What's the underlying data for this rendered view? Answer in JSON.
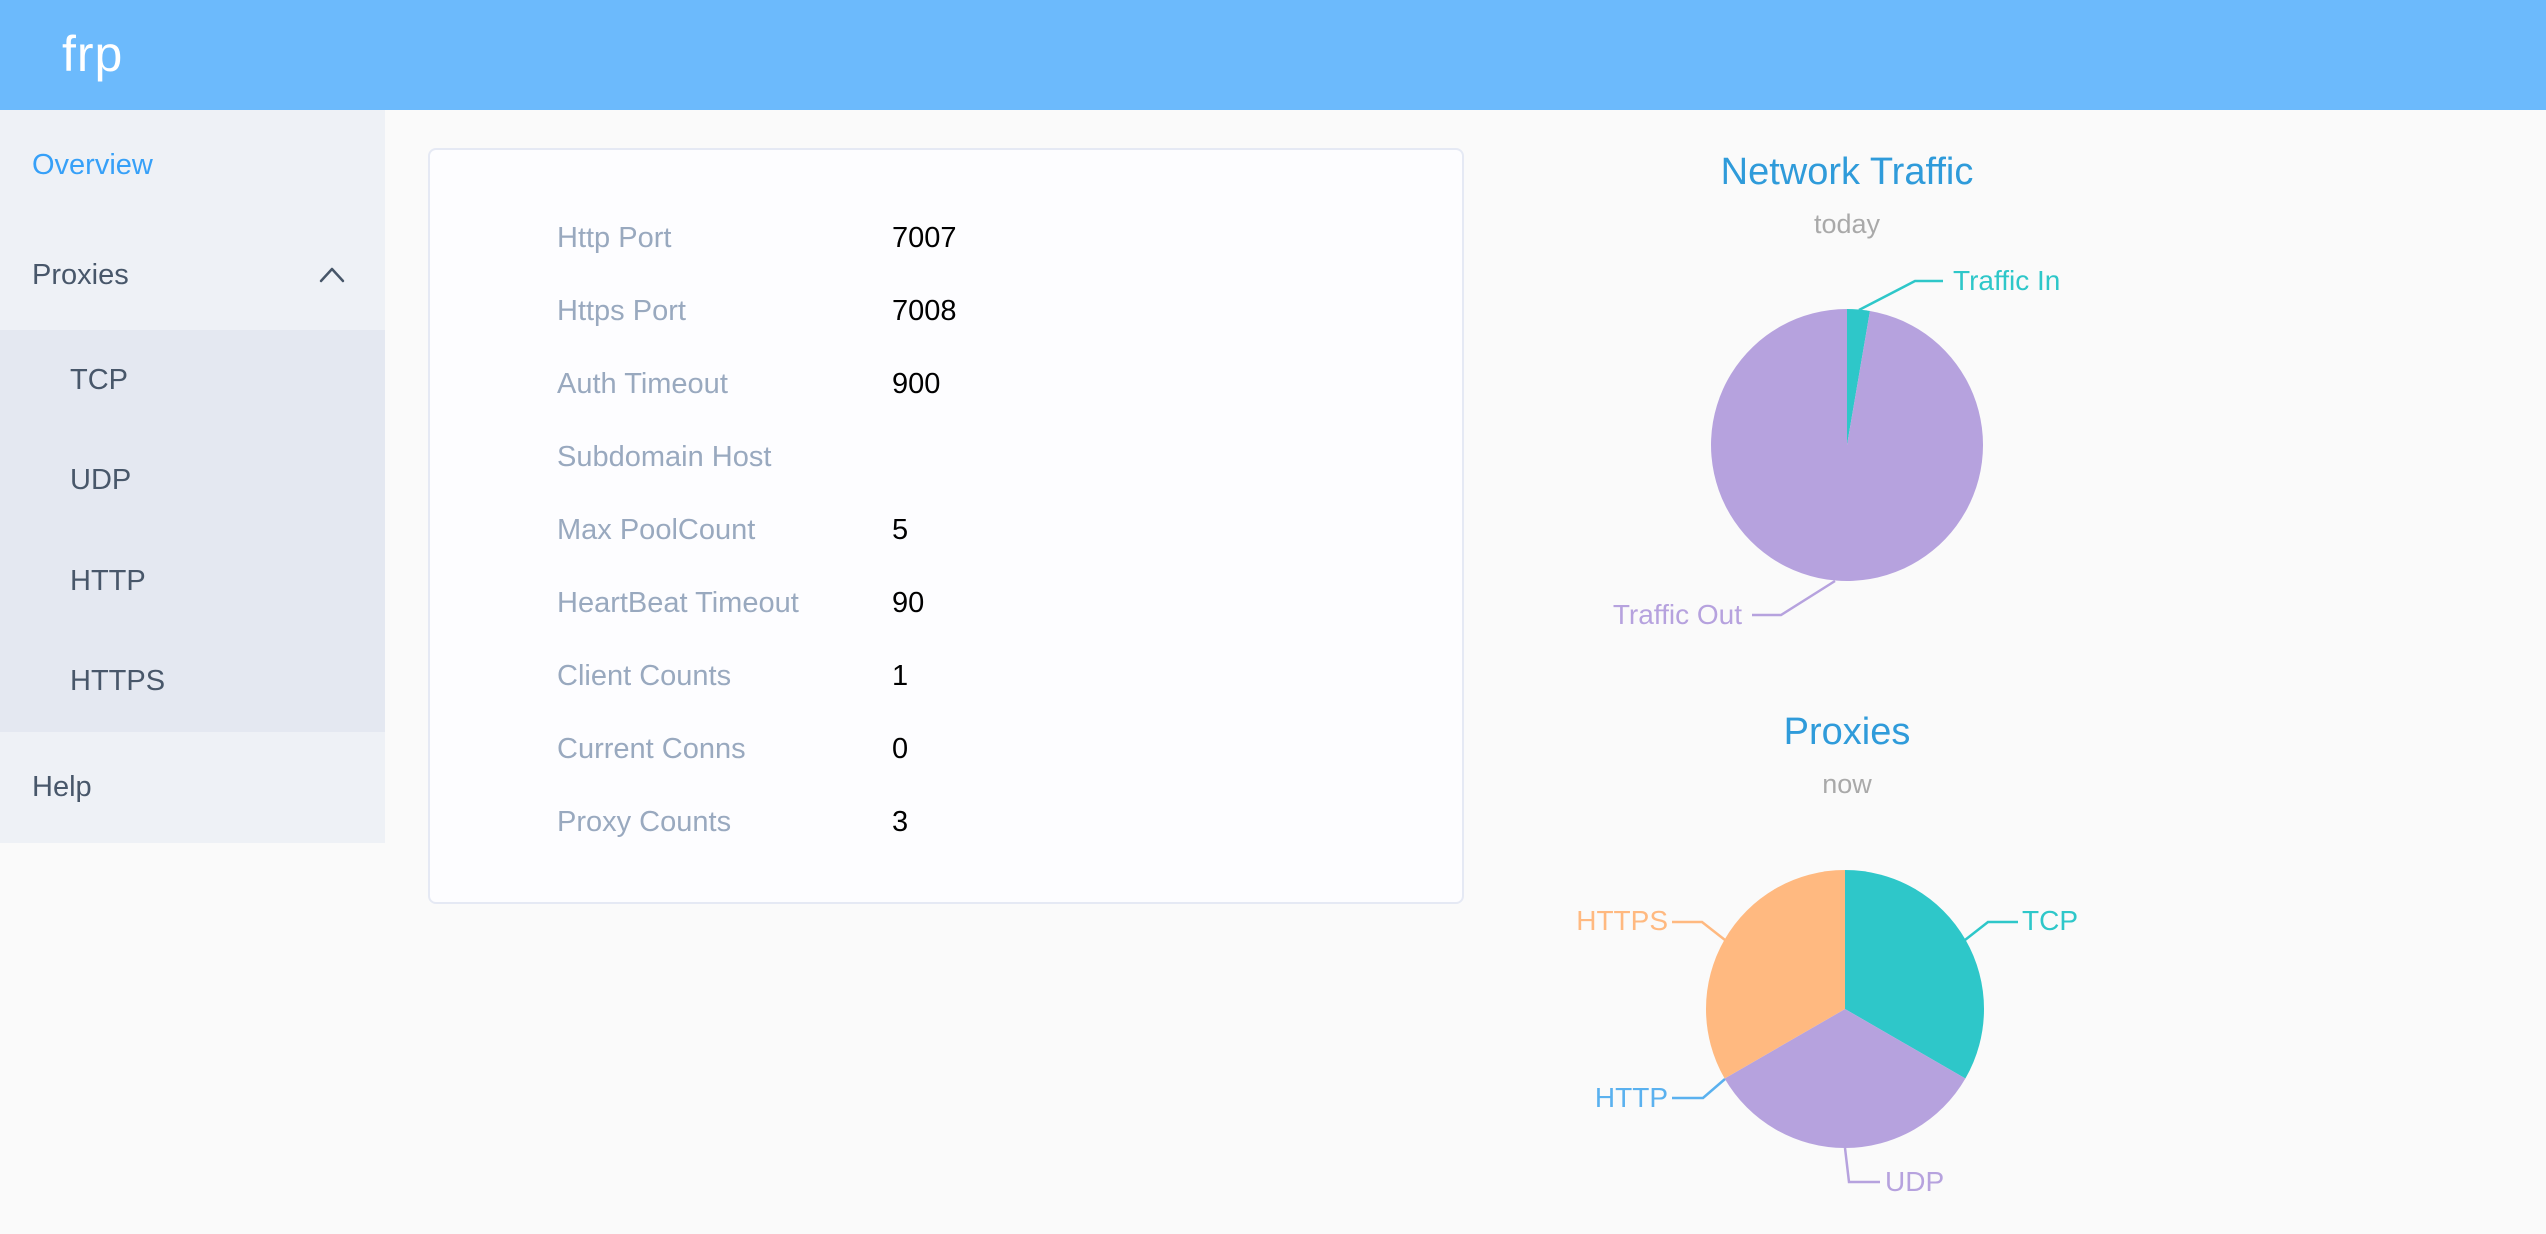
{
  "header": {
    "logo": "frp"
  },
  "sidebar": {
    "items": [
      {
        "label": "Overview",
        "active": true
      },
      {
        "label": "Proxies",
        "expanded": true
      },
      {
        "label": "TCP"
      },
      {
        "label": "UDP"
      },
      {
        "label": "HTTP"
      },
      {
        "label": "HTTPS"
      },
      {
        "label": "Help"
      }
    ]
  },
  "overview": {
    "rows": [
      {
        "label": "Http Port",
        "value": "7007"
      },
      {
        "label": "Https Port",
        "value": "7008"
      },
      {
        "label": "Auth Timeout",
        "value": "900"
      },
      {
        "label": "Subdomain Host",
        "value": ""
      },
      {
        "label": "Max PoolCount",
        "value": "5"
      },
      {
        "label": "HeartBeat Timeout",
        "value": "90"
      },
      {
        "label": "Client Counts",
        "value": "1"
      },
      {
        "label": "Current Conns",
        "value": "0"
      },
      {
        "label": "Proxy Counts",
        "value": "3"
      }
    ]
  },
  "chart_data": [
    {
      "type": "pie",
      "title": "Network Traffic",
      "subtitle": "today",
      "legend_position": "none",
      "labels": "outside-with-leader-lines",
      "start_angle_deg": 0,
      "values_unit": "percent-estimated-from-slice-angles",
      "series": [
        {
          "name": "Traffic In",
          "value": 2.7,
          "color": "#2ec7c9"
        },
        {
          "name": "Traffic Out",
          "value": 97.3,
          "color": "#b6a2de"
        }
      ]
    },
    {
      "type": "pie",
      "title": "Proxies",
      "subtitle": "now",
      "legend_position": "none",
      "labels": "outside-with-leader-lines",
      "start_angle_deg": 0,
      "values_unit": "proxy-count",
      "series": [
        {
          "name": "TCP",
          "value": 1,
          "color": "#2ec7c9"
        },
        {
          "name": "UDP",
          "value": 1,
          "color": "#b6a2de"
        },
        {
          "name": "HTTP",
          "value": 0,
          "color": "#5ab1ef"
        },
        {
          "name": "HTTPS",
          "value": 1,
          "color": "#ffb980"
        }
      ]
    }
  ],
  "colors": {
    "header_bg": "#6cbafc",
    "sidebar_bg": "#eef1f6",
    "submenu_bg": "#e4e8f1",
    "menu_text": "#48576a",
    "menu_active": "#36a0f8",
    "card_label": "#99a9bf",
    "chart_title": "#2f9bda",
    "chart_subtitle": "#a9a9a9"
  }
}
